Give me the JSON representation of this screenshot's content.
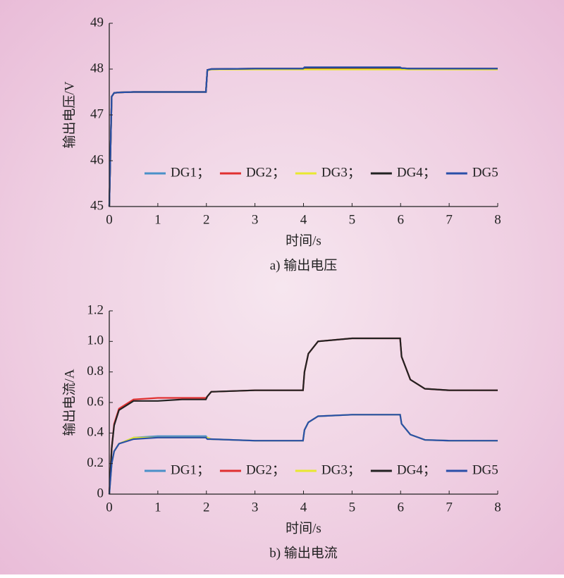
{
  "chart_data": [
    {
      "type": "line",
      "caption": "a) 输出电压",
      "xlabel": "时间/s",
      "ylabel": "输出电压/V",
      "x": [
        0,
        0.05,
        0.1,
        0.2,
        0.5,
        1,
        1.5,
        1.99,
        2.02,
        2.1,
        3,
        3.99,
        4.02,
        4.1,
        4.3,
        5,
        5.99,
        6.02,
        6.2,
        6.5,
        7,
        8
      ],
      "xlim": [
        0,
        8
      ],
      "xticks": [
        0,
        1,
        2,
        3,
        4,
        5,
        6,
        7,
        8
      ],
      "ylim": [
        45,
        49
      ],
      "yticks": [
        45,
        46,
        47,
        48,
        49
      ],
      "series": [
        {
          "name": "DG1；",
          "color": "#4a90c8",
          "values": [
            45,
            47.4,
            47.48,
            47.49,
            47.5,
            47.5,
            47.5,
            47.5,
            47.98,
            48.0,
            48.0,
            48.0,
            48.0,
            48.0,
            48.0,
            48.0,
            48.0,
            48.0,
            48.0,
            48.0,
            48.0,
            48.0
          ]
        },
        {
          "name": "DG2；",
          "color": "#e03030",
          "values": [
            45,
            47.4,
            47.48,
            47.49,
            47.5,
            47.5,
            47.5,
            47.5,
            47.98,
            48.0,
            48.01,
            48.01,
            48.02,
            48.02,
            48.02,
            48.02,
            48.02,
            48.02,
            48.01,
            48.01,
            48.01,
            48.01
          ]
        },
        {
          "name": "DG3；",
          "color": "#e8e830",
          "values": [
            45,
            47.4,
            47.48,
            47.49,
            47.5,
            47.5,
            47.5,
            47.5,
            47.97,
            47.99,
            47.99,
            47.99,
            47.99,
            47.99,
            47.99,
            47.99,
            47.99,
            47.99,
            47.99,
            47.99,
            47.99,
            47.99
          ]
        },
        {
          "name": "DG4；",
          "color": "#222222",
          "values": [
            45,
            47.4,
            47.48,
            47.49,
            47.5,
            47.5,
            47.5,
            47.5,
            47.98,
            48.0,
            48.01,
            48.01,
            48.03,
            48.03,
            48.03,
            48.03,
            48.03,
            48.02,
            48.01,
            48.01,
            48.01,
            48.01
          ]
        },
        {
          "name": "DG5",
          "color": "#2a4fa8",
          "values": [
            45,
            47.4,
            47.48,
            47.49,
            47.5,
            47.5,
            47.5,
            47.5,
            47.98,
            48.0,
            48.01,
            48.01,
            48.04,
            48.04,
            48.04,
            48.04,
            48.04,
            48.02,
            48.01,
            48.01,
            48.01,
            48.01
          ]
        }
      ]
    },
    {
      "type": "line",
      "caption": "b) 输出电流",
      "xlabel": "时间/s",
      "ylabel": "输出电流/A",
      "x": [
        0,
        0.05,
        0.1,
        0.2,
        0.5,
        1,
        1.5,
        1.99,
        2.02,
        2.1,
        3,
        3.99,
        4.02,
        4.1,
        4.3,
        5,
        5.99,
        6.02,
        6.2,
        6.5,
        7,
        8
      ],
      "xlim": [
        0,
        8
      ],
      "xticks": [
        0,
        1,
        2,
        3,
        4,
        5,
        6,
        7,
        8
      ],
      "ylim": [
        0,
        1.2
      ],
      "yticks": [
        0,
        0.2,
        0.4,
        0.6,
        0.8,
        {
          "value": 1,
          "label": "1.0"
        },
        1.2
      ],
      "series": [
        {
          "name": "DG1；",
          "color": "#4a90c8",
          "values": [
            0,
            0.2,
            0.28,
            0.33,
            0.37,
            0.38,
            0.38,
            0.38,
            0.37,
            0.36,
            0.35,
            0.35,
            0.42,
            0.47,
            0.51,
            0.52,
            0.52,
            0.46,
            0.39,
            0.355,
            0.35,
            0.35
          ]
        },
        {
          "name": "DG2；",
          "color": "#e03030",
          "values": [
            0,
            0.3,
            0.46,
            0.56,
            0.62,
            0.63,
            0.63,
            0.63,
            0.64,
            0.67,
            0.68,
            0.68,
            0.8,
            0.92,
            1.0,
            1.02,
            1.02,
            0.9,
            0.75,
            0.69,
            0.68,
            0.68
          ]
        },
        {
          "name": "DG3；",
          "color": "#e8e830",
          "values": [
            0,
            0.2,
            0.28,
            0.33,
            0.37,
            0.37,
            0.37,
            0.37,
            0.37,
            0.36,
            0.35,
            0.35,
            0.42,
            0.47,
            0.51,
            0.52,
            0.52,
            0.46,
            0.39,
            0.355,
            0.35,
            0.35
          ]
        },
        {
          "name": "DG4；",
          "color": "#222222",
          "values": [
            0,
            0.3,
            0.45,
            0.55,
            0.61,
            0.61,
            0.62,
            0.62,
            0.64,
            0.67,
            0.68,
            0.68,
            0.8,
            0.92,
            1.0,
            1.02,
            1.02,
            0.9,
            0.75,
            0.69,
            0.68,
            0.68
          ]
        },
        {
          "name": "DG5",
          "color": "#2a4fa8",
          "values": [
            0,
            0.2,
            0.28,
            0.33,
            0.36,
            0.37,
            0.37,
            0.37,
            0.36,
            0.36,
            0.35,
            0.35,
            0.42,
            0.47,
            0.51,
            0.52,
            0.52,
            0.46,
            0.39,
            0.355,
            0.35,
            0.35
          ]
        }
      ]
    }
  ]
}
